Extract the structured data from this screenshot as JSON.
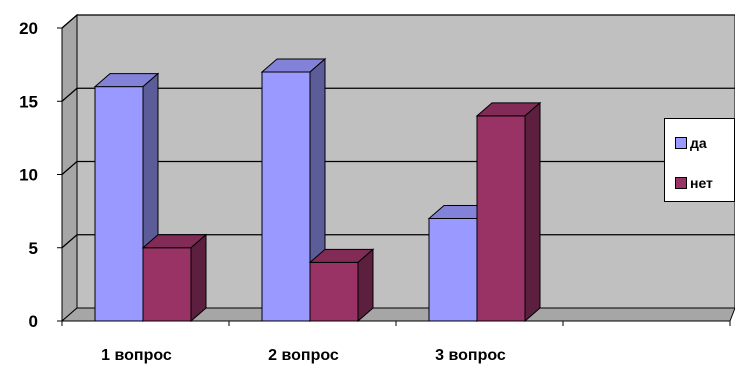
{
  "chart_data": {
    "type": "bar",
    "categories": [
      "1 вопрос",
      "2 вопрос",
      "3 вопрос",
      ""
    ],
    "series": [
      {
        "name": "да",
        "values": [
          16,
          17,
          7,
          null
        ],
        "color": "#9999ff"
      },
      {
        "name": "нет",
        "values": [
          5,
          4,
          14,
          null
        ],
        "color": "#993366"
      }
    ],
    "ylim": [
      0,
      20
    ],
    "yticks": [
      0,
      5,
      10,
      15,
      20
    ],
    "grid": true,
    "legend": "right",
    "wall_color": "#c0c0c0"
  }
}
